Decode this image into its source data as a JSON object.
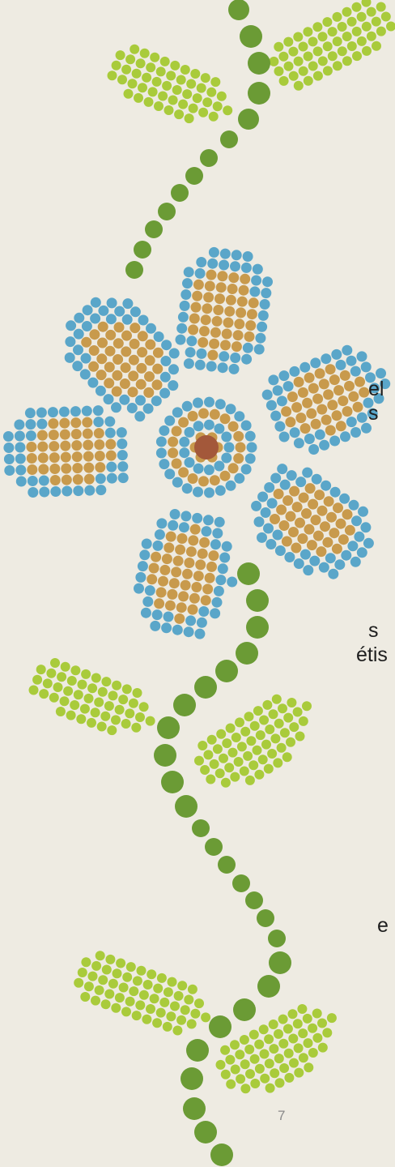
{
  "fragments": [
    "el",
    "s",
    "s",
    "étis",
    "e"
  ],
  "page_number": "7"
}
